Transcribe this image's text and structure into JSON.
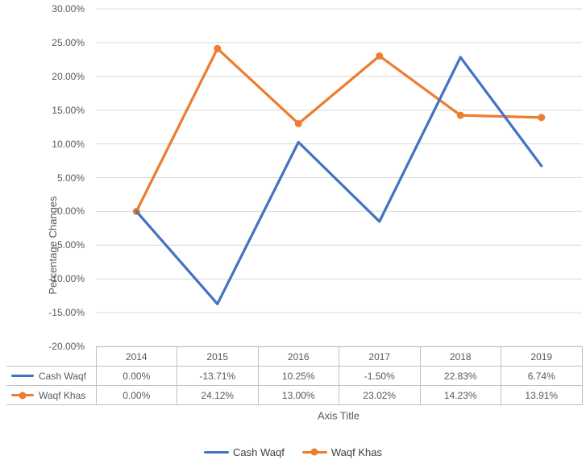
{
  "chart_data": {
    "type": "line",
    "title": "",
    "categories": [
      "2014",
      "2015",
      "2016",
      "2017",
      "2018",
      "2019"
    ],
    "series": [
      {
        "name": "Cash Waqf",
        "color": "#4472C4",
        "marker": false,
        "values": [
          0.0,
          -13.71,
          10.25,
          -1.5,
          22.83,
          6.74
        ],
        "labels": [
          "0.00%",
          "-13.71%",
          "10.25%",
          "-1.50%",
          "22.83%",
          "6.74%"
        ]
      },
      {
        "name": "Waqf Khas",
        "color": "#ED7D31",
        "marker": true,
        "values": [
          0.0,
          24.12,
          13.0,
          23.02,
          14.23,
          13.91
        ],
        "labels": [
          "0.00%",
          "24.12%",
          "13.00%",
          "23.02%",
          "14.23%",
          "13.91%"
        ]
      }
    ],
    "ylabel": "Percentage Changes",
    "xlabel": "Axis Title",
    "ylim": [
      -20,
      30
    ],
    "ytick_step": 5,
    "yticks": [
      "30.00%",
      "25.00%",
      "20.00%",
      "15.00%",
      "10.00%",
      "5.00%",
      "0.00%",
      "-5.00%",
      "-10.00%",
      "-15.00%",
      "-20.00%"
    ],
    "grid": true,
    "gridline_color": "#D9D9D9",
    "table_border_color": "#C0C0C0",
    "legend_position": "bottom",
    "data_table": true
  }
}
